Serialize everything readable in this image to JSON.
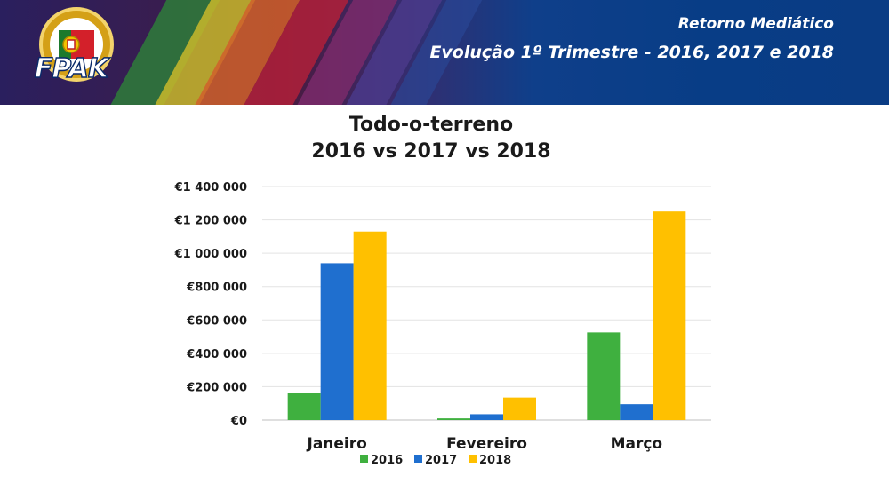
{
  "header": {
    "line1": "Retorno Mediático",
    "line2": "Evolução 1º Trimestre - 2016, 2017 e 2018",
    "logo_text": "FPAK"
  },
  "chart_data": {
    "type": "bar",
    "title_line1": "Todo-o-terreno",
    "title_line2": "2016 vs 2017 vs 2018",
    "categories": [
      "Janeiro",
      "Fevereiro",
      "Março"
    ],
    "series": [
      {
        "name": "2016",
        "color": "#3fb03f",
        "values": [
          160000,
          10000,
          525000
        ]
      },
      {
        "name": "2017",
        "color": "#1f6fcf",
        "values": [
          940000,
          35000,
          95000
        ]
      },
      {
        "name": "2018",
        "color": "#ffc000",
        "values": [
          1130000,
          135000,
          1250000
        ]
      }
    ],
    "ylim": [
      0,
      1400000
    ],
    "yticks": [
      0,
      200000,
      400000,
      600000,
      800000,
      1000000,
      1200000,
      1400000
    ],
    "ytick_labels": [
      "€0",
      "€200 000",
      "€400 000",
      "€600 000",
      "€800 000",
      "€1 000 000",
      "€1 200 000",
      "€1 400 000"
    ],
    "grid": true,
    "legend_position": "bottom"
  }
}
